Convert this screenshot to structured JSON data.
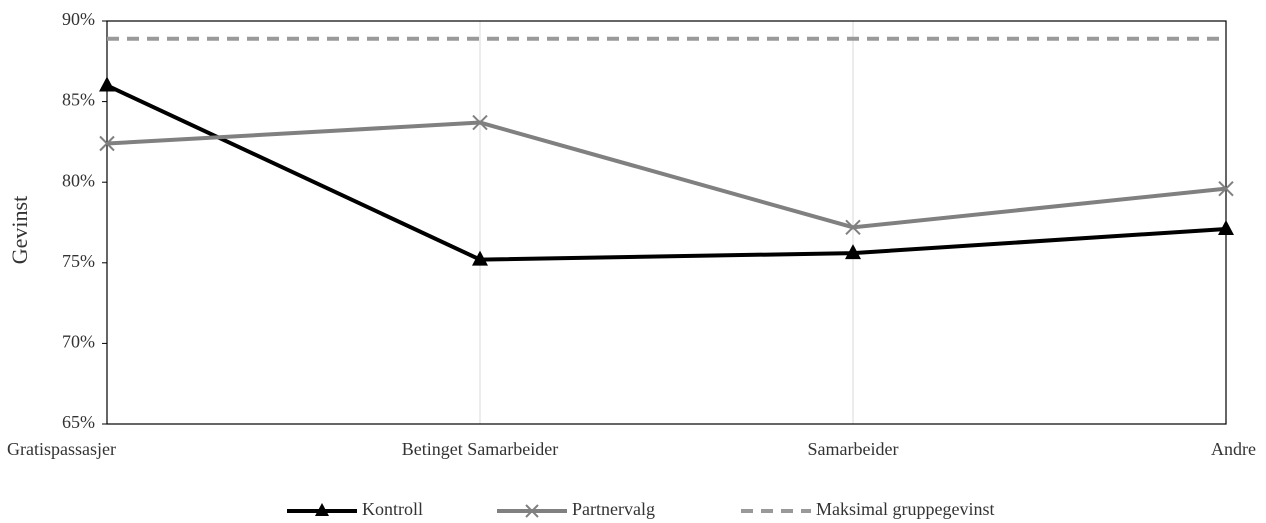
{
  "chart_data": {
    "type": "line",
    "y_label": "Gevinst",
    "categories": [
      "Gratispassasjer",
      "Betinget Samarbeider",
      "Samarbeider",
      "Andre"
    ],
    "series": [
      {
        "name": "Kontroll",
        "color": "#000000",
        "marker": "triangle",
        "dash": false,
        "values": [
          86.0,
          75.2,
          75.6,
          77.1
        ]
      },
      {
        "name": "Partnervalg",
        "color": "#808080",
        "marker": "x",
        "dash": false,
        "values": [
          82.4,
          83.7,
          77.2,
          79.6
        ]
      },
      {
        "name": "Maksimal gruppegevinst",
        "color": "#999999",
        "marker": "none",
        "dash": true,
        "values": [
          88.9,
          88.9,
          88.9,
          88.9
        ]
      }
    ],
    "ylim": [
      65,
      90
    ],
    "yticks": [
      {
        "value": 65,
        "label": "65%"
      },
      {
        "value": 70,
        "label": "70%"
      },
      {
        "value": 75,
        "label": "75%"
      },
      {
        "value": 80,
        "label": "80%"
      },
      {
        "value": 85,
        "label": "85%"
      },
      {
        "value": 90,
        "label": "90%"
      }
    ],
    "grid": true,
    "legend": "bottom"
  }
}
